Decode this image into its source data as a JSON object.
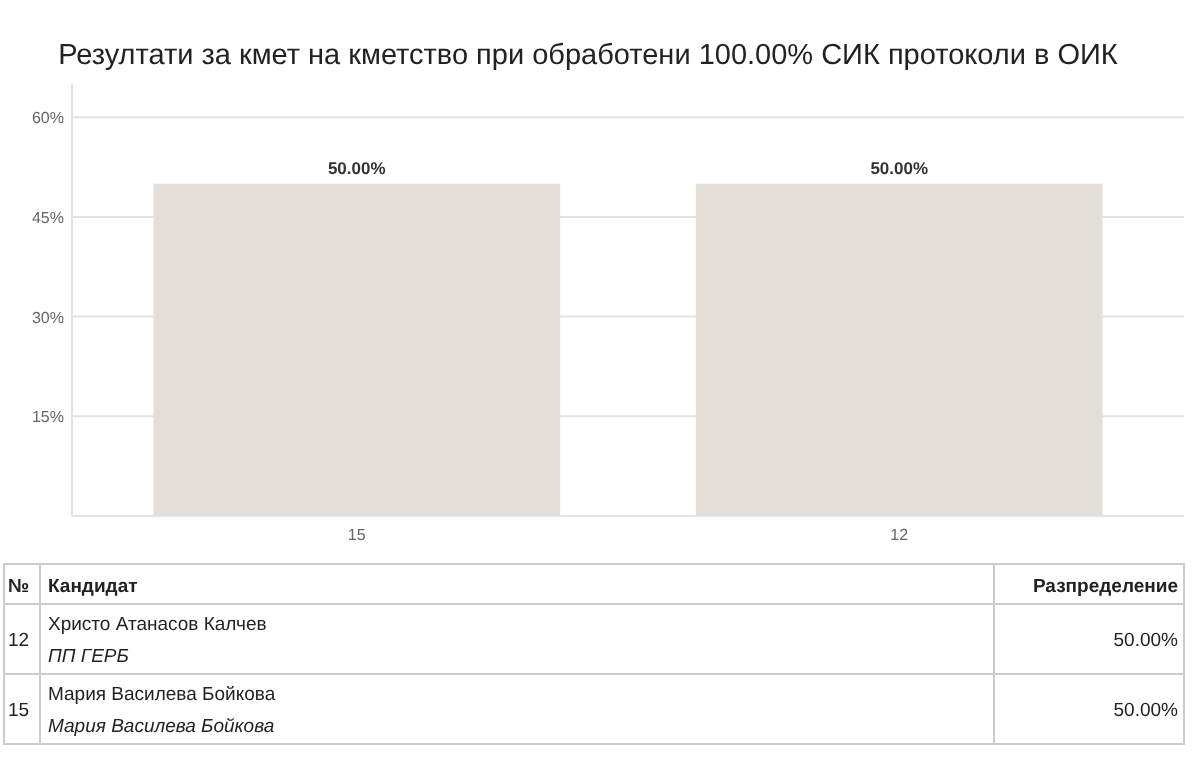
{
  "chart_data": {
    "type": "bar",
    "title": "Резултати за кмет на кметство при обработени 100.00% СИК протоколи в ОИК",
    "categories": [
      "15",
      "12"
    ],
    "values": [
      50,
      50
    ],
    "color": "#e3dfd7",
    "value_labels": [
      "50.00%",
      "50.00%"
    ],
    "ylim": [
      0,
      65
    ],
    "yticks": [
      {
        "value": 15,
        "label": "15%"
      },
      {
        "value": 30,
        "label": "30%"
      },
      {
        "value": 45,
        "label": "45%"
      },
      {
        "value": 60,
        "label": "60%"
      }
    ],
    "grid": "y",
    "annotations": [
      "№",
      "Кандидат",
      "Разпределение",
      "12",
      "Христо Атанасов Калчев",
      "ПП ГЕРБ",
      "50.00%",
      "15",
      "Мария Василева Бойкова",
      "Мария Василева Бойкова",
      "50.00%"
    ]
  }
}
